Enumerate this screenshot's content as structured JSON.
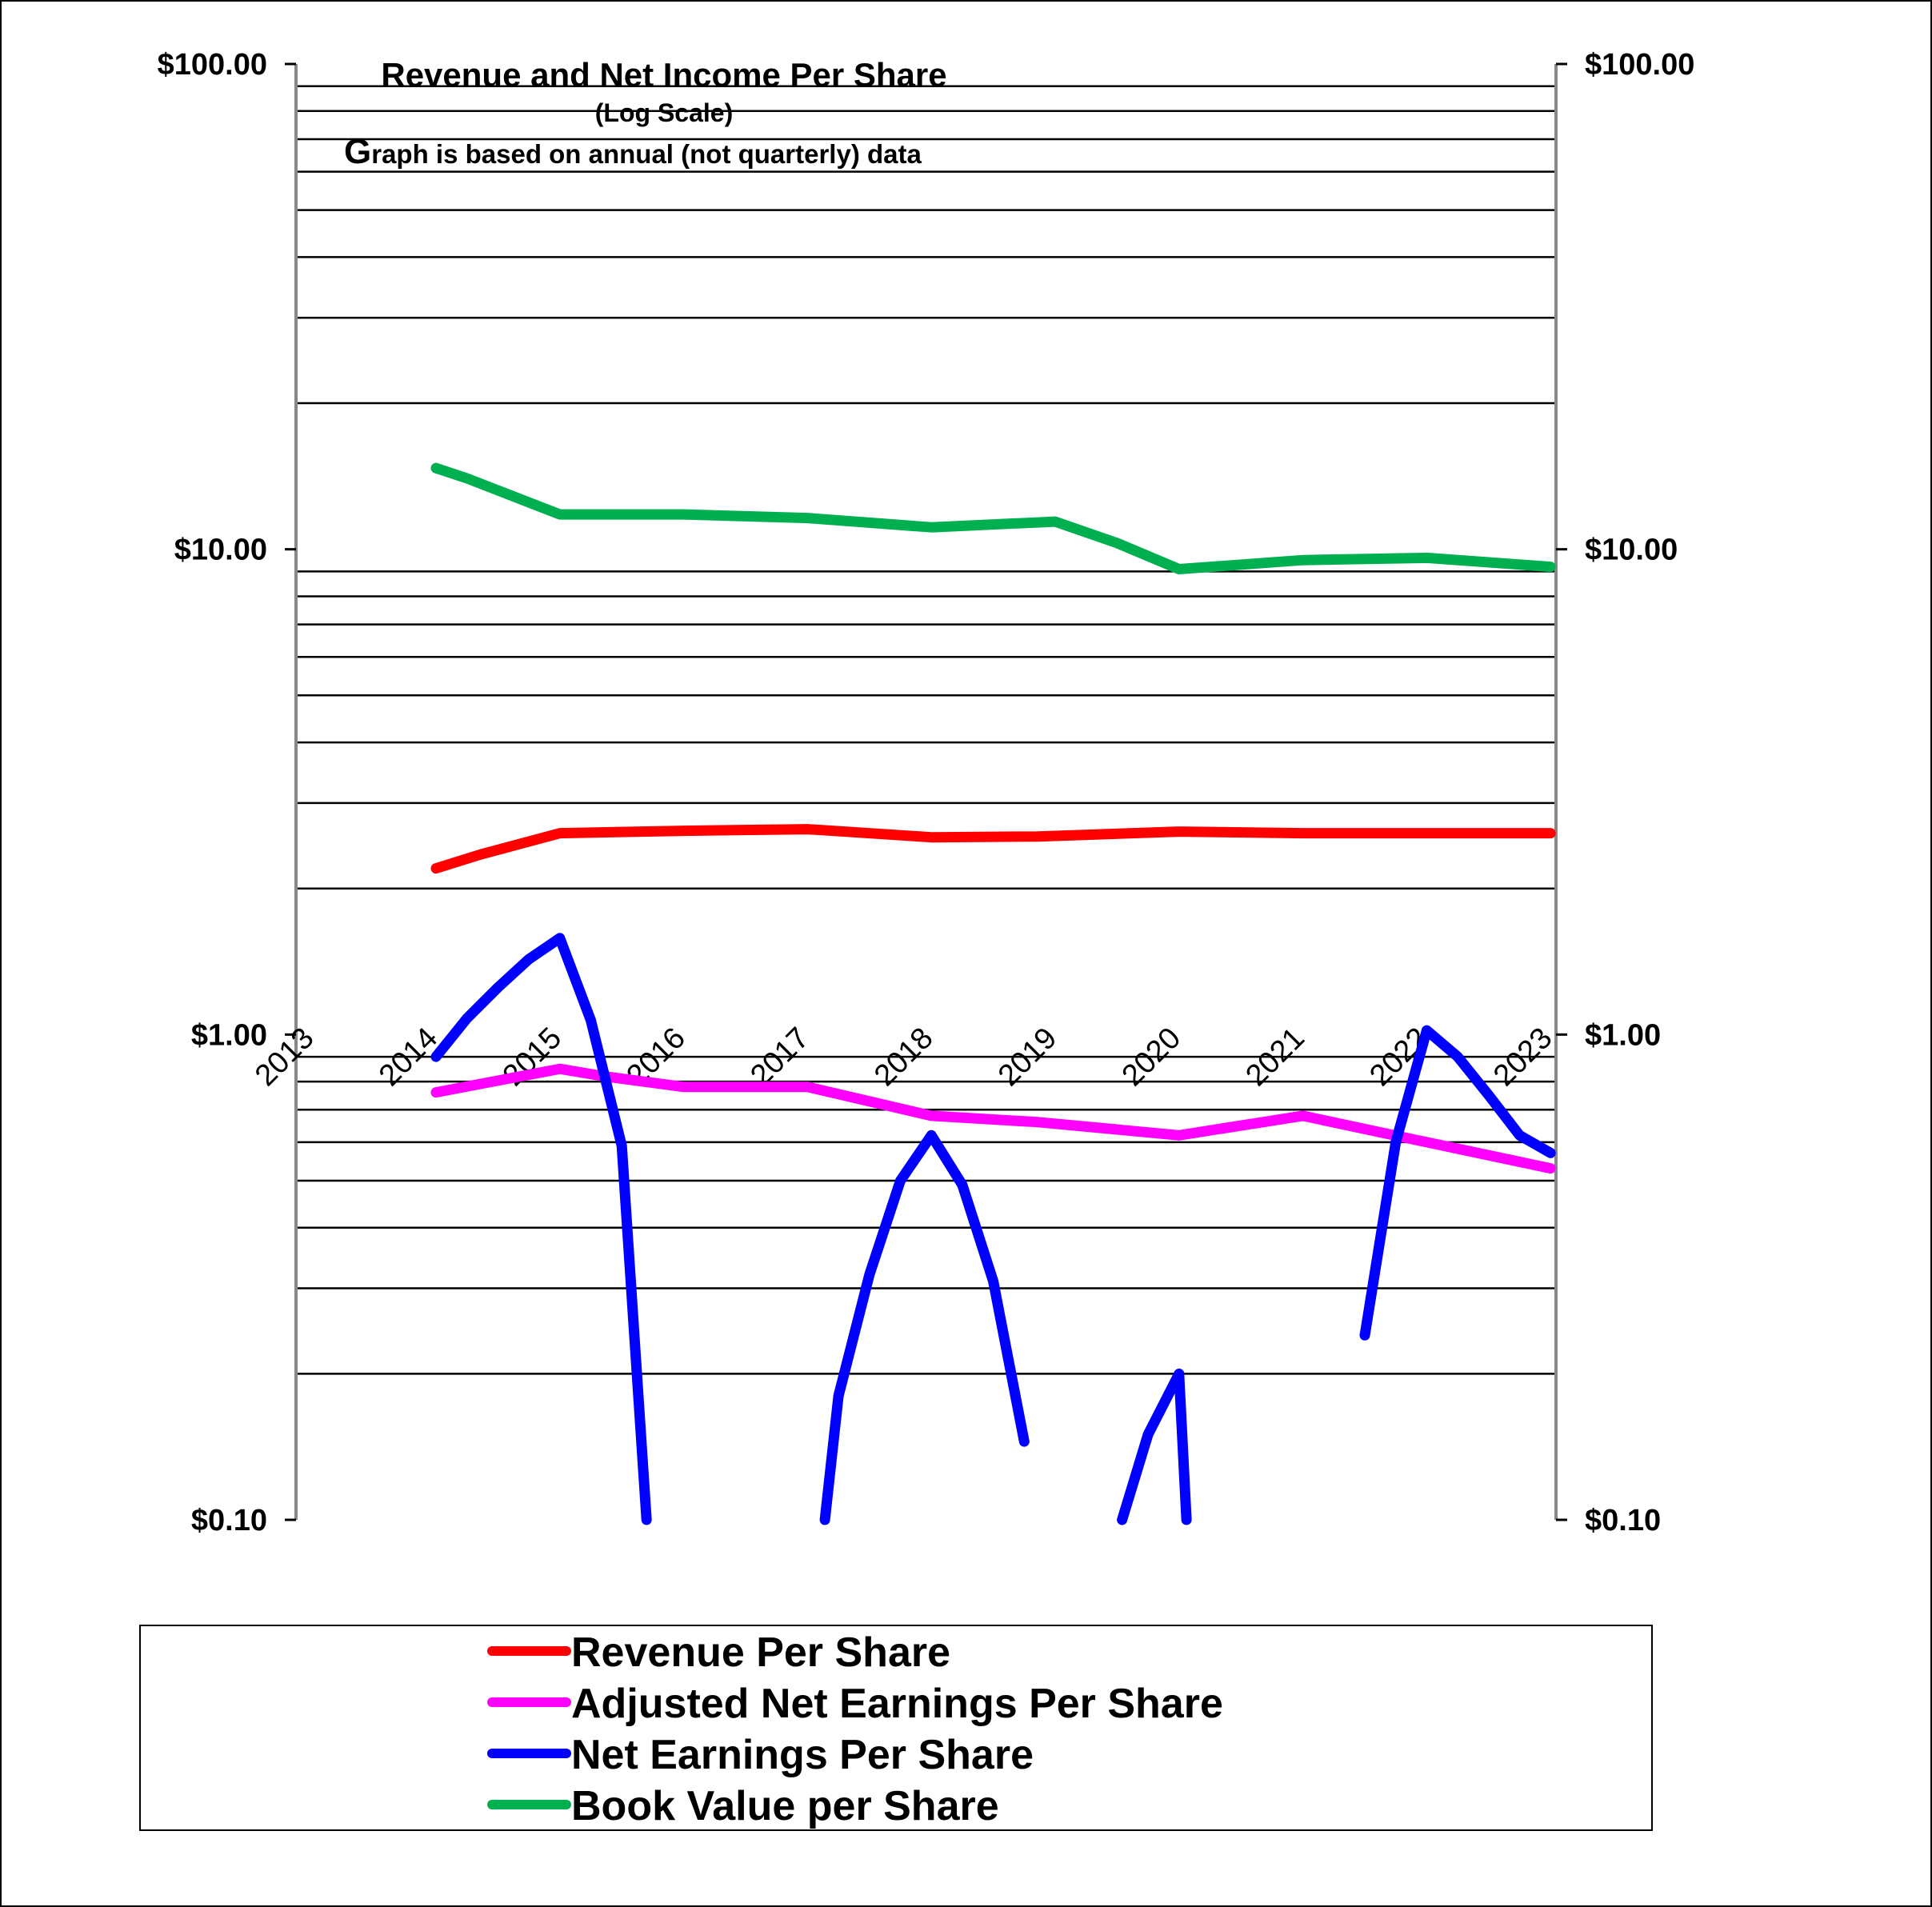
{
  "chart_data": {
    "type": "line",
    "title": "Revenue and Net Income Per Share",
    "subtitle": "(Log Scale)",
    "note": "Graph is based on annual (not quarterly) data",
    "y_scale": "log",
    "ylim": [
      0.1,
      100
    ],
    "y_ticks": [
      "$100.00",
      "$10.00",
      "$1.00",
      "$0.10"
    ],
    "y_tick_values": [
      100,
      10,
      1,
      0.1
    ],
    "x_ticks": [
      "2013",
      "2014",
      "2015",
      "2016",
      "2017",
      "2018",
      "2019",
      "2020",
      "2021",
      "2022",
      "2023"
    ],
    "xlim": [
      2013,
      2023
    ],
    "grid": true,
    "legend_position": "bottom",
    "series": [
      {
        "name": "Revenue Per Share",
        "color": "#ff0000",
        "points": [
          [
            2014.14,
            2.2
          ],
          [
            2014.5,
            2.35
          ],
          [
            2015.14,
            2.6
          ],
          [
            2016.14,
            2.63
          ],
          [
            2017.14,
            2.65
          ],
          [
            2018.14,
            2.55
          ],
          [
            2019.0,
            2.56
          ],
          [
            2020.14,
            2.62
          ],
          [
            2021.14,
            2.6
          ],
          [
            2022.14,
            2.6
          ],
          [
            2023.14,
            2.6
          ]
        ]
      },
      {
        "name": "Adjusted Net Earnings Per Share",
        "color": "#ff00ff",
        "points": [
          [
            2014.14,
            0.76
          ],
          [
            2015.14,
            0.85
          ],
          [
            2015.5,
            0.82
          ],
          [
            2016.14,
            0.78
          ],
          [
            2017.14,
            0.78
          ],
          [
            2018.14,
            0.68
          ],
          [
            2019.0,
            0.66
          ],
          [
            2020.14,
            0.62
          ],
          [
            2021.14,
            0.68
          ],
          [
            2022.14,
            0.6
          ],
          [
            2023.14,
            0.53
          ]
        ]
      },
      {
        "name": "Net Earnings Per Share",
        "color": "#0000ff",
        "segments": [
          [
            [
              2014.14,
              0.9
            ],
            [
              2014.39,
              1.08
            ],
            [
              2014.64,
              1.25
            ],
            [
              2014.89,
              1.43
            ],
            [
              2015.14,
              1.58
            ],
            [
              2015.39,
              1.07
            ],
            [
              2015.64,
              0.59
            ],
            [
              2015.84,
              0.1
            ]
          ],
          [
            [
              2017.28,
              0.1
            ],
            [
              2017.39,
              0.18
            ],
            [
              2017.64,
              0.32
            ],
            [
              2017.89,
              0.5
            ],
            [
              2018.14,
              0.62
            ],
            [
              2018.39,
              0.49
            ],
            [
              2018.64,
              0.31
            ],
            [
              2018.89,
              0.145
            ]
          ],
          [
            [
              2019.68,
              0.1
            ],
            [
              2019.89,
              0.15
            ],
            [
              2020.14,
              0.2
            ],
            [
              2020.2,
              0.1
            ]
          ],
          [
            [
              2021.64,
              0.24
            ],
            [
              2021.89,
              0.6
            ],
            [
              2022.14,
              1.02
            ],
            [
              2022.39,
              0.9
            ],
            [
              2022.64,
              0.75
            ],
            [
              2022.89,
              0.62
            ],
            [
              2023.14,
              0.57
            ]
          ]
        ]
      },
      {
        "name": "Book Value per Share",
        "color": "#00b050",
        "points": [
          [
            2014.14,
            14.7
          ],
          [
            2014.39,
            14.0
          ],
          [
            2015.14,
            11.8
          ],
          [
            2016.14,
            11.8
          ],
          [
            2017.14,
            11.6
          ],
          [
            2018.14,
            11.1
          ],
          [
            2019.14,
            11.4
          ],
          [
            2019.64,
            10.3
          ],
          [
            2020.14,
            9.1
          ],
          [
            2021.14,
            9.5
          ],
          [
            2022.14,
            9.6
          ],
          [
            2023.14,
            9.2
          ]
        ]
      }
    ]
  }
}
